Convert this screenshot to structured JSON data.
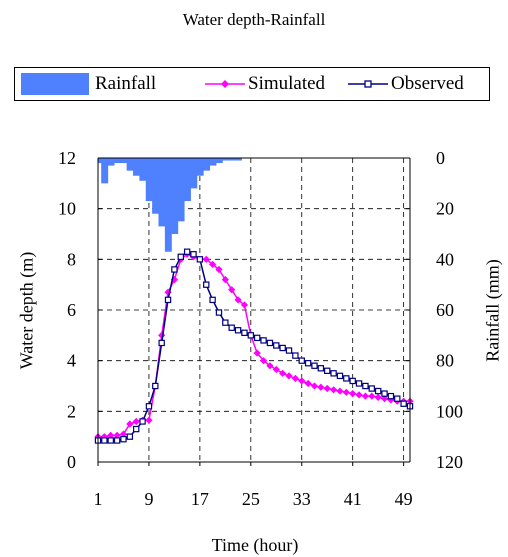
{
  "chart_data": {
    "type": "line",
    "title": "Water depth-Rainfall",
    "xlabel": "Time (hour)",
    "ylabel": "Water depth (m)",
    "y2label": "Rainfall (mm)",
    "xlim": [
      1,
      50
    ],
    "ylim": [
      0,
      12
    ],
    "y2lim": [
      0,
      120
    ],
    "y2_inverted": true,
    "x_ticks": [
      1,
      9,
      17,
      25,
      33,
      41,
      49
    ],
    "y_ticks": [
      0,
      2,
      4,
      6,
      8,
      10,
      12
    ],
    "y2_ticks": [
      0,
      20,
      40,
      60,
      80,
      100,
      120
    ],
    "grid": "dashed",
    "legend_position": "top",
    "legend": [
      "Rainfall",
      "Simulated",
      "Observed"
    ],
    "colors": {
      "rainfall": "#4F81FF",
      "simulated": "#FF00FF",
      "observed": "#000080"
    },
    "rainfall": {
      "name": "Rainfall",
      "x": [
        1,
        2,
        3,
        4,
        5,
        6,
        7,
        8,
        9,
        10,
        11,
        12,
        13,
        14,
        15,
        16,
        17,
        18,
        19,
        20,
        21,
        22,
        23
      ],
      "values": [
        2,
        10,
        3,
        2,
        2,
        5,
        7,
        9,
        17,
        22,
        27,
        37,
        30,
        25,
        17,
        12,
        7,
        5,
        3,
        2,
        1,
        1,
        1
      ]
    },
    "series": [
      {
        "name": "Simulated",
        "x": [
          1,
          2,
          3,
          4,
          5,
          6,
          7,
          8,
          9,
          10,
          11,
          12,
          13,
          14,
          15,
          16,
          17,
          18,
          19,
          20,
          21,
          22,
          23,
          24,
          25,
          26,
          27,
          28,
          29,
          30,
          31,
          32,
          33,
          34,
          35,
          36,
          37,
          38,
          39,
          40,
          41,
          42,
          43,
          44,
          45,
          46,
          47,
          48,
          49,
          50
        ],
        "values": [
          1.0,
          1.0,
          1.05,
          1.05,
          1.1,
          1.5,
          1.6,
          1.65,
          1.65,
          3.0,
          5.0,
          6.7,
          7.2,
          8.0,
          8.2,
          8.1,
          8.0,
          8.0,
          7.8,
          7.6,
          7.2,
          6.8,
          6.4,
          6.2,
          5.0,
          4.3,
          4.0,
          3.8,
          3.65,
          3.5,
          3.4,
          3.3,
          3.2,
          3.1,
          3.0,
          2.95,
          2.9,
          2.85,
          2.8,
          2.75,
          2.7,
          2.65,
          2.6,
          2.6,
          2.55,
          2.5,
          2.45,
          2.4,
          2.4,
          2.4
        ]
      },
      {
        "name": "Observed",
        "x": [
          1,
          2,
          3,
          4,
          5,
          6,
          7,
          8,
          9,
          10,
          11,
          12,
          13,
          14,
          15,
          16,
          17,
          18,
          19,
          20,
          21,
          22,
          23,
          24,
          25,
          26,
          27,
          28,
          29,
          30,
          31,
          32,
          33,
          34,
          35,
          36,
          37,
          38,
          39,
          40,
          41,
          42,
          43,
          44,
          45,
          46,
          47,
          48,
          49,
          50
        ],
        "values": [
          0.85,
          0.85,
          0.85,
          0.85,
          0.9,
          1.0,
          1.3,
          1.6,
          2.2,
          3.0,
          4.7,
          6.4,
          7.6,
          8.1,
          8.3,
          8.2,
          8.0,
          7.0,
          6.4,
          5.9,
          5.5,
          5.3,
          5.2,
          5.1,
          5.0,
          4.9,
          4.8,
          4.7,
          4.6,
          4.5,
          4.4,
          4.2,
          4.0,
          3.9,
          3.8,
          3.7,
          3.6,
          3.5,
          3.4,
          3.3,
          3.2,
          3.1,
          3.0,
          2.9,
          2.8,
          2.7,
          2.6,
          2.5,
          2.3,
          2.2
        ]
      }
    ]
  }
}
